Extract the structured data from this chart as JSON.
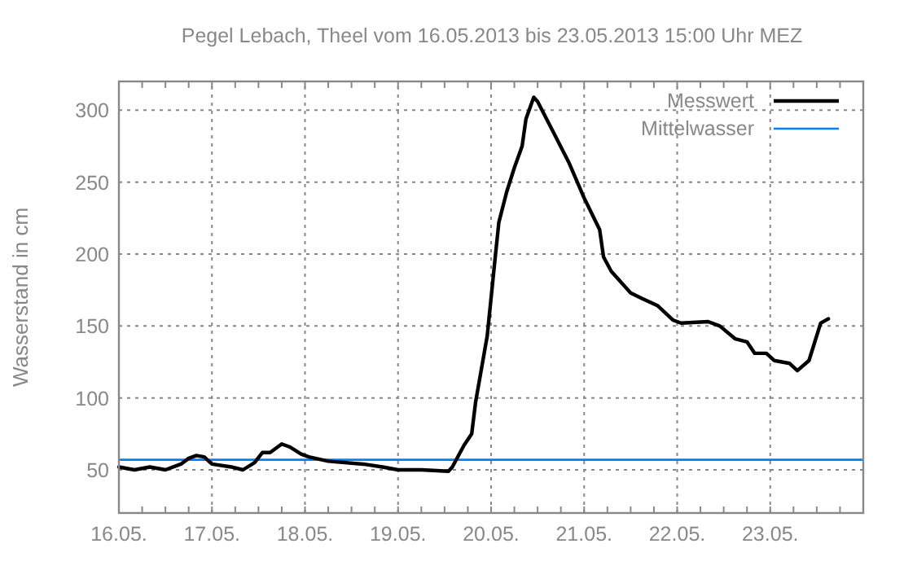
{
  "chart_data": {
    "type": "line",
    "title": "Pegel Lebach, Theel vom 16.05.2013 bis 23.05.2013 15:00 Uhr MEZ",
    "ylabel": "Wasserstand in cm",
    "x": [
      "2013-05-16T00:00",
      "2013-05-16T04:00",
      "2013-05-16T08:00",
      "2013-05-16T12:00",
      "2013-05-16T16:00",
      "2013-05-16T18:00",
      "2013-05-16T20:00",
      "2013-05-16T22:00",
      "2013-05-17T00:00",
      "2013-05-17T05:00",
      "2013-05-17T08:00",
      "2013-05-17T11:00",
      "2013-05-17T13:00",
      "2013-05-17T15:00",
      "2013-05-17T18:00",
      "2013-05-17T20:00",
      "2013-05-17T23:00",
      "2013-05-18T01:00",
      "2013-05-18T06:00",
      "2013-05-18T15:00",
      "2013-05-18T20:00",
      "2013-05-19T00:00",
      "2013-05-19T06:00",
      "2013-05-19T13:00",
      "2013-05-19T14:00",
      "2013-05-19T17:00",
      "2013-05-19T19:00",
      "2013-05-19T20:00",
      "2013-05-19T23:00",
      "2013-05-20T01:00",
      "2013-05-20T02:00",
      "2013-05-20T04:00",
      "2013-05-20T06:00",
      "2013-05-20T08:00",
      "2013-05-20T09:00",
      "2013-05-20T11:00",
      "2013-05-20T12:00",
      "2013-05-20T16:00",
      "2013-05-20T20:00",
      "2013-05-21T00:00",
      "2013-05-21T04:00",
      "2013-05-21T05:00",
      "2013-05-21T07:00",
      "2013-05-21T12:00",
      "2013-05-21T15:00",
      "2013-05-21T19:00",
      "2013-05-21T23:00",
      "2013-05-22T01:00",
      "2013-05-22T08:00",
      "2013-05-22T11:00",
      "2013-05-22T15:00",
      "2013-05-22T18:00",
      "2013-05-22T20:00",
      "2013-05-22T23:00",
      "2013-05-23T01:00",
      "2013-05-23T05:00",
      "2013-05-23T07:00",
      "2013-05-23T10:00",
      "2013-05-23T13:00",
      "2013-05-23T15:00"
    ],
    "series": [
      {
        "name": "Messwert",
        "color": "#000000",
        "values": [
          52,
          50,
          52,
          50,
          54,
          58,
          60,
          59,
          54,
          52,
          50,
          55,
          62,
          62,
          68,
          66,
          61,
          59,
          56,
          54,
          52,
          50,
          50,
          49,
          52,
          67,
          75,
          97,
          143,
          196,
          222,
          243,
          260,
          275,
          294,
          309,
          306,
          285,
          264,
          239,
          217,
          198,
          188,
          173,
          169,
          164,
          154,
          152,
          153,
          150,
          141,
          139,
          131,
          131,
          126,
          124,
          119,
          126,
          152,
          155
        ]
      }
    ],
    "ref_lines": [
      {
        "axis": "y",
        "value": 57,
        "label": "Mittelwasser",
        "color": "#0080ff"
      }
    ],
    "xlim": [
      "2013-05-16T00:00",
      "2013-05-24T00:00"
    ],
    "xticks": [
      {
        "value": "2013-05-16T00:00",
        "label": "16.05."
      },
      {
        "value": "2013-05-16T06:00",
        "label": null
      },
      {
        "value": "2013-05-16T12:00",
        "label": null
      },
      {
        "value": "2013-05-16T18:00",
        "label": null
      },
      {
        "value": "2013-05-17T00:00",
        "label": "17.05."
      },
      {
        "value": "2013-05-17T06:00",
        "label": null
      },
      {
        "value": "2013-05-17T12:00",
        "label": null
      },
      {
        "value": "2013-05-17T18:00",
        "label": null
      },
      {
        "value": "2013-05-18T00:00",
        "label": "18.05."
      },
      {
        "value": "2013-05-18T06:00",
        "label": null
      },
      {
        "value": "2013-05-18T12:00",
        "label": null
      },
      {
        "value": "2013-05-18T18:00",
        "label": null
      },
      {
        "value": "2013-05-19T00:00",
        "label": "19.05."
      },
      {
        "value": "2013-05-19T06:00",
        "label": null
      },
      {
        "value": "2013-05-19T12:00",
        "label": null
      },
      {
        "value": "2013-05-19T18:00",
        "label": null
      },
      {
        "value": "2013-05-20T00:00",
        "label": "20.05."
      },
      {
        "value": "2013-05-20T06:00",
        "label": null
      },
      {
        "value": "2013-05-20T12:00",
        "label": null
      },
      {
        "value": "2013-05-20T18:00",
        "label": null
      },
      {
        "value": "2013-05-21T00:00",
        "label": "21.05."
      },
      {
        "value": "2013-05-21T06:00",
        "label": null
      },
      {
        "value": "2013-05-21T12:00",
        "label": null
      },
      {
        "value": "2013-05-21T18:00",
        "label": null
      },
      {
        "value": "2013-05-22T00:00",
        "label": "22.05."
      },
      {
        "value": "2013-05-22T06:00",
        "label": null
      },
      {
        "value": "2013-05-22T12:00",
        "label": null
      },
      {
        "value": "2013-05-22T18:00",
        "label": null
      },
      {
        "value": "2013-05-23T00:00",
        "label": "23.05."
      },
      {
        "value": "2013-05-23T06:00",
        "label": null
      },
      {
        "value": "2013-05-23T12:00",
        "label": null
      },
      {
        "value": "2013-05-23T18:00",
        "label": null
      }
    ],
    "ylim": [
      20,
      320
    ],
    "yticks": [
      50,
      100,
      150,
      200,
      250,
      300
    ],
    "grid": true,
    "legend": "top right",
    "marker": "none",
    "line_style": "solid"
  }
}
